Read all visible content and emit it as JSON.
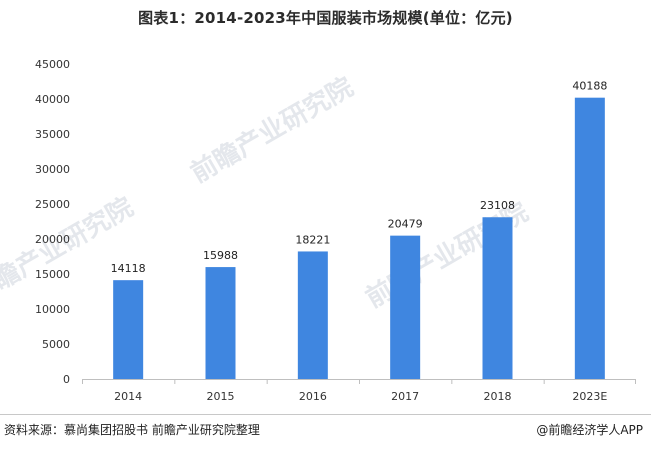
{
  "chart_data": {
    "type": "bar",
    "title": "图表1：2014-2023年中国服装市场规模(单位：亿元)",
    "categories": [
      "2014",
      "2015",
      "2016",
      "2017",
      "2018",
      "2023E"
    ],
    "values": [
      14118,
      15988,
      18221,
      20479,
      23108,
      40188
    ],
    "data_labels": [
      "14118",
      "15988",
      "18221",
      "20479",
      "23108",
      "40188"
    ],
    "y_ticks": [
      "0",
      "5000",
      "10000",
      "15000",
      "20000",
      "25000",
      "30000",
      "35000",
      "40000",
      "45000"
    ],
    "ylim": [
      0,
      45000
    ],
    "xlabel": "",
    "ylabel": "",
    "grid": false,
    "legend": "none",
    "bar_color": "#3f86e0"
  },
  "footer": {
    "source": "资料来源：慕尚集团招股书 前瞻产业研究院整理",
    "brand": "@前瞻经济学人APP"
  },
  "watermark": {
    "text": "前瞻产业研究院"
  }
}
